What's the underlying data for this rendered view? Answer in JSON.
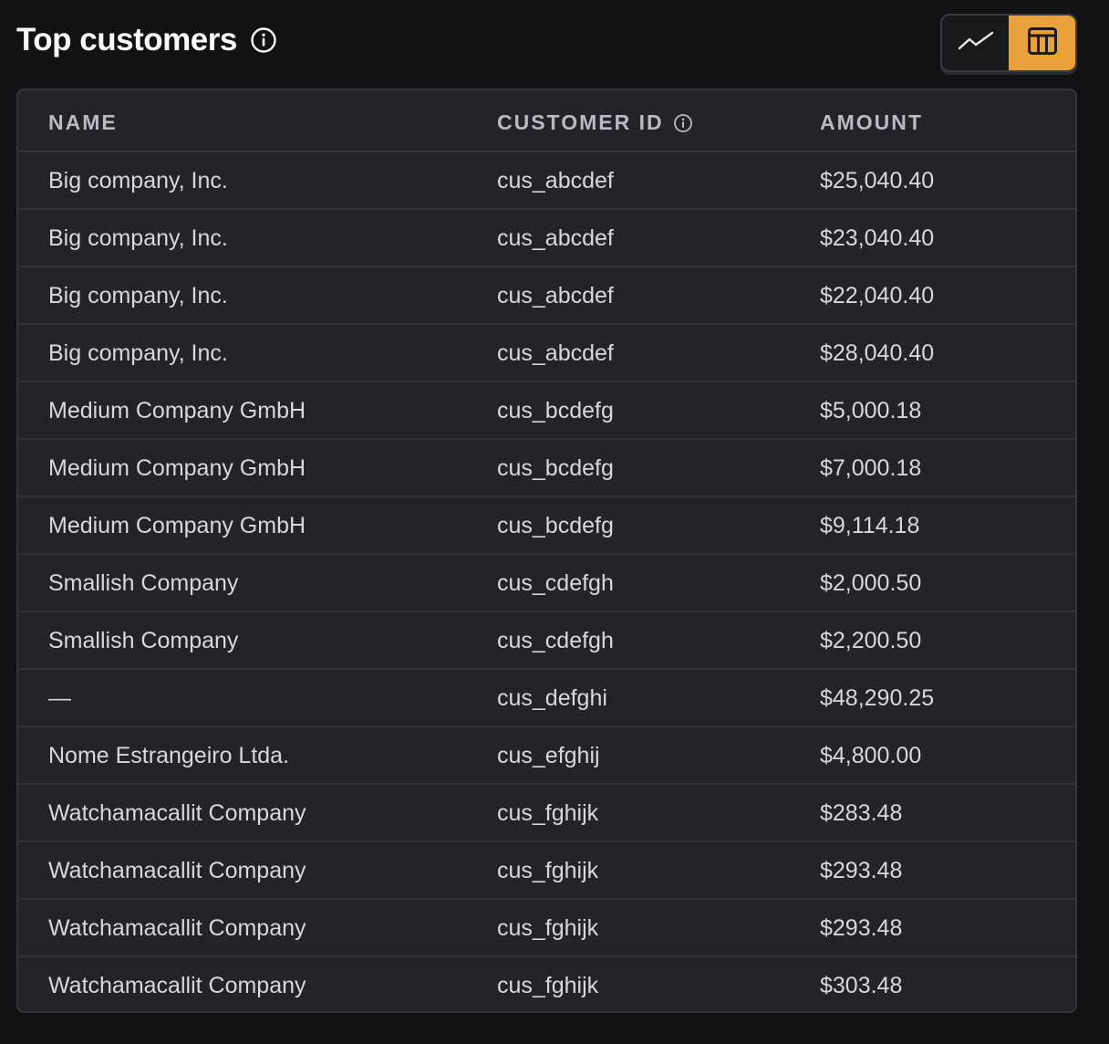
{
  "header": {
    "title": "Top customers",
    "info_icon": "info-circle-icon"
  },
  "view_toggle": {
    "options": [
      {
        "name": "chart-view",
        "icon": "line-chart-icon",
        "active": false
      },
      {
        "name": "table-view",
        "icon": "table-icon",
        "active": true
      }
    ],
    "accent_color": "#e9a23b"
  },
  "table": {
    "columns": {
      "name": "NAME",
      "customer_id": "CUSTOMER ID",
      "amount": "AMOUNT"
    },
    "rows": [
      {
        "name": "Big company, Inc.",
        "customer_id": "cus_abcdef",
        "amount": "$25,040.40"
      },
      {
        "name": "Big company, Inc.",
        "customer_id": "cus_abcdef",
        "amount": "$23,040.40"
      },
      {
        "name": "Big company, Inc.",
        "customer_id": "cus_abcdef",
        "amount": "$22,040.40"
      },
      {
        "name": "Big company, Inc.",
        "customer_id": "cus_abcdef",
        "amount": "$28,040.40"
      },
      {
        "name": "Medium Company GmbH",
        "customer_id": "cus_bcdefg",
        "amount": "$5,000.18"
      },
      {
        "name": "Medium Company GmbH",
        "customer_id": "cus_bcdefg",
        "amount": "$7,000.18"
      },
      {
        "name": "Medium Company GmbH",
        "customer_id": "cus_bcdefg",
        "amount": "$9,114.18"
      },
      {
        "name": "Smallish Company",
        "customer_id": "cus_cdefgh",
        "amount": "$2,000.50"
      },
      {
        "name": "Smallish Company",
        "customer_id": "cus_cdefgh",
        "amount": "$2,200.50"
      },
      {
        "name": "—",
        "customer_id": "cus_defghi",
        "amount": "$48,290.25"
      },
      {
        "name": "Nome Estrangeiro Ltda.",
        "customer_id": "cus_efghij",
        "amount": "$4,800.00"
      },
      {
        "name": "Watchamacallit Company",
        "customer_id": "cus_fghijk",
        "amount": "$283.48"
      },
      {
        "name": "Watchamacallit Company",
        "customer_id": "cus_fghijk",
        "amount": "$293.48"
      },
      {
        "name": "Watchamacallit Company",
        "customer_id": "cus_fghijk",
        "amount": "$293.48"
      },
      {
        "name": "Watchamacallit Company",
        "customer_id": "cus_fghijk",
        "amount": "$303.48"
      }
    ]
  }
}
